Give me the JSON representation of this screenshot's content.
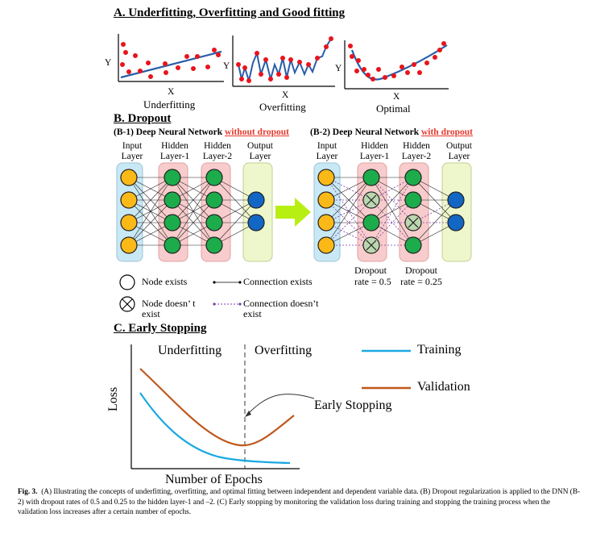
{
  "sectionA": {
    "title": "A. Underfitting, Overfitting and Good fitting",
    "plots": [
      {
        "xlabel": "X",
        "ylabel": "Y",
        "caption": "Underfitting"
      },
      {
        "xlabel": "X",
        "ylabel": "Y",
        "caption": "Overfitting"
      },
      {
        "xlabel": "X",
        "ylabel": "Y",
        "caption": "Optimal"
      }
    ]
  },
  "sectionB": {
    "title": "B. Dropout",
    "b1": {
      "prefix": "(B-1) Deep Neural Network ",
      "highlight": "without dropout"
    },
    "b2": {
      "prefix": "(B-2) Deep Neural Network ",
      "highlight": "with dropout"
    },
    "layers": {
      "input": [
        "Input",
        "Layer"
      ],
      "hidden1": [
        "Hidden",
        "Layer-1"
      ],
      "hidden2": [
        "Hidden",
        "Layer-2"
      ],
      "output": [
        "Output",
        "Layer"
      ]
    },
    "dropout1": [
      "Dropout",
      "rate = 0.5"
    ],
    "dropout2": [
      "Dropout",
      "rate = 0.25"
    ],
    "legend": {
      "node_exists": "Node exists",
      "node_not_exist": [
        "Node doesn’ t",
        "exist"
      ],
      "connection_exists": "Connection exists",
      "connection_not_exist": [
        "Connection doesn’t",
        "exist"
      ]
    }
  },
  "sectionC": {
    "title": "C. Early Stopping",
    "underfitting": "Underfitting",
    "overfitting": "Overfitting",
    "early_stopping": "Early Stopping",
    "ylabel": "Loss",
    "xlabel": "Number of Epochs",
    "legend": [
      {
        "name": "Training",
        "color": "#1ba9e1"
      },
      {
        "name": "Validation",
        "color": "#c0581c"
      }
    ]
  },
  "caption": {
    "label": "Fig. 3.",
    "text": "(A) Illustrating the concepts of underfitting, overfitting, and optimal fitting between independent and dependent variable data. (B) Dropout regularization is applied to the DNN (B-2) with dropout rates of 0.5 and 0.25 to the hidden layer-1 and –2. (C) Early stopping by monitoring the validation loss during training and stopping the training process when the validation loss increases after a certain number of epochs."
  }
}
